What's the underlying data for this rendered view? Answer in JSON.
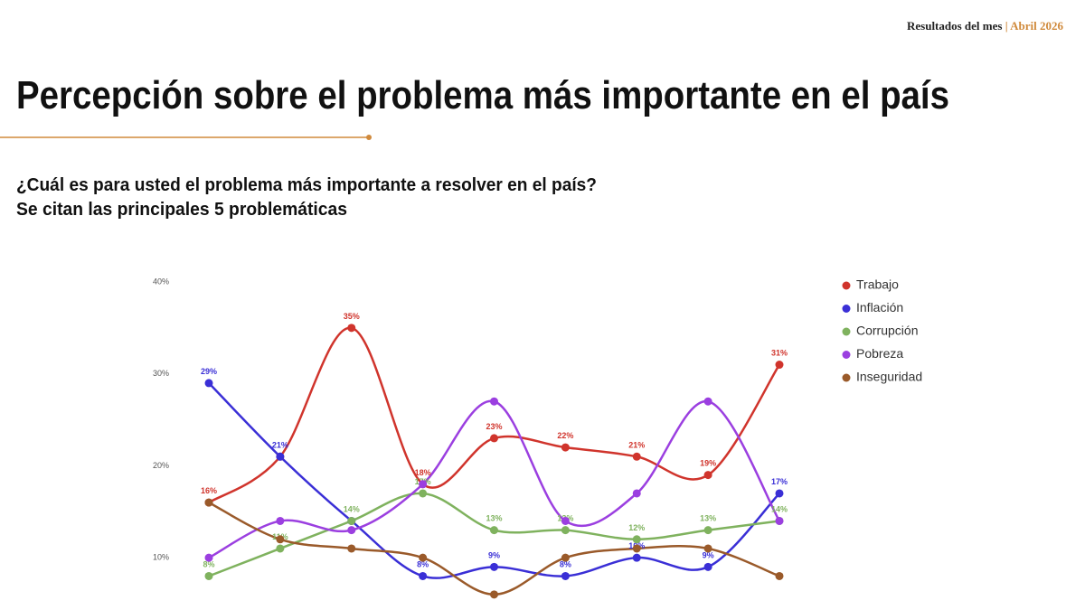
{
  "header": {
    "label": "Resultados del mes",
    "separator": "|",
    "period": "Abril 2026"
  },
  "title": "Percepción sobre el problema más importante en el país",
  "subtitle": [
    "¿Cuál es para usted el problema más importante a resolver en el país?",
    "Se citan las principales 5 problemáticas"
  ],
  "chart_data": {
    "type": "line",
    "smooth": true,
    "categories": [
      null,
      null,
      null,
      null,
      null,
      null,
      null,
      null,
      null
    ],
    "ylim": [
      5,
      40
    ],
    "yticks": [
      {
        "value": 10,
        "label": "10%"
      },
      {
        "value": 20,
        "label": "20%"
      },
      {
        "value": 30,
        "label": "30%"
      },
      {
        "value": 40,
        "label": "40%"
      }
    ],
    "legend": "right",
    "series": [
      {
        "name": "Trabajo",
        "color": "#d0342c",
        "values": [
          16,
          21,
          35,
          18,
          23,
          22,
          21,
          19,
          31
        ],
        "value_labels": [
          "16%",
          null,
          "35%",
          "18%",
          "23%",
          "22%",
          "21%",
          "19%",
          "31%"
        ]
      },
      {
        "name": "Inflación",
        "color": "#3a2fd6",
        "values": [
          29,
          21,
          14,
          8,
          9,
          8,
          10,
          9,
          17
        ],
        "value_labels": [
          "29%",
          "21%",
          null,
          "8%",
          "9%",
          "8%",
          "10%",
          "9%",
          "17%"
        ]
      },
      {
        "name": "Corrupción",
        "color": "#7fb25e",
        "values": [
          8,
          11,
          14,
          17,
          13,
          13,
          12,
          13,
          14
        ],
        "value_labels": [
          "8%",
          "11%",
          "14%",
          "17%",
          "13%",
          "13%",
          "12%",
          "13%",
          "14%"
        ]
      },
      {
        "name": "Pobreza",
        "color": "#9b3fe0",
        "values": [
          10,
          14,
          13,
          18,
          27,
          14,
          17,
          27,
          14
        ]
      },
      {
        "name": "Inseguridad",
        "color": "#9a5a2a",
        "values": [
          16,
          12,
          11,
          10,
          6,
          10,
          11,
          11,
          8
        ]
      }
    ]
  }
}
